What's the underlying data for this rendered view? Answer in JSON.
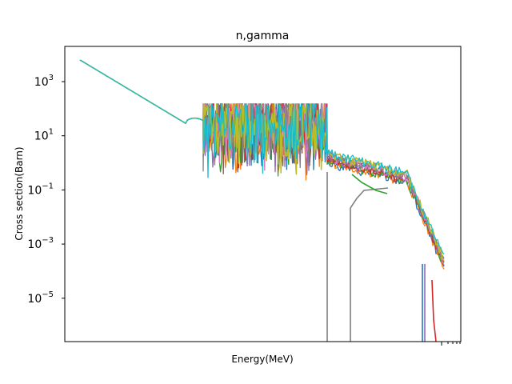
{
  "chart_data": {
    "type": "line",
    "title": "n,gamma",
    "xlabel": "Energy(MeV)",
    "ylabel": "Cross section(Barn)",
    "yscale": "log",
    "ylim": [
      2.5e-07,
      20000
    ],
    "xscale": "log",
    "grid": false,
    "legend": "none",
    "y_ticks": [
      {
        "base": "10",
        "exp": "3",
        "value": 1000
      },
      {
        "base": "10",
        "exp": "1",
        "value": 10
      },
      {
        "base": "10",
        "exp": "−1",
        "value": 0.1
      },
      {
        "base": "10",
        "exp": "−3",
        "value": 0.001
      },
      {
        "base": "10",
        "exp": "−5",
        "value": 1e-05
      }
    ],
    "colors": [
      "#1f77b4",
      "#ff7f0e",
      "#2ca02c",
      "#d62728",
      "#9467bd",
      "#8c564b",
      "#e377c2",
      "#7f7f7f",
      "#bcbd22",
      "#17becf"
    ],
    "series_count": 10,
    "description_points": {
      "smooth_start": [
        [
          0,
          6000
        ],
        [
          1,
          1200
        ],
        [
          2,
          200
        ],
        [
          3,
          40
        ],
        [
          3.3,
          35
        ],
        [
          3.5,
          40
        ]
      ],
      "resonance_region": [
        3.5,
        6.9
      ],
      "continuum_start": [
        6.9,
        2.0
      ],
      "continuum_mid": [
        9.0,
        0.4
      ],
      "continuum_drop": [
        9.8,
        0.05
      ],
      "continuum_end": [
        10.3,
        0.0005
      ]
    }
  }
}
